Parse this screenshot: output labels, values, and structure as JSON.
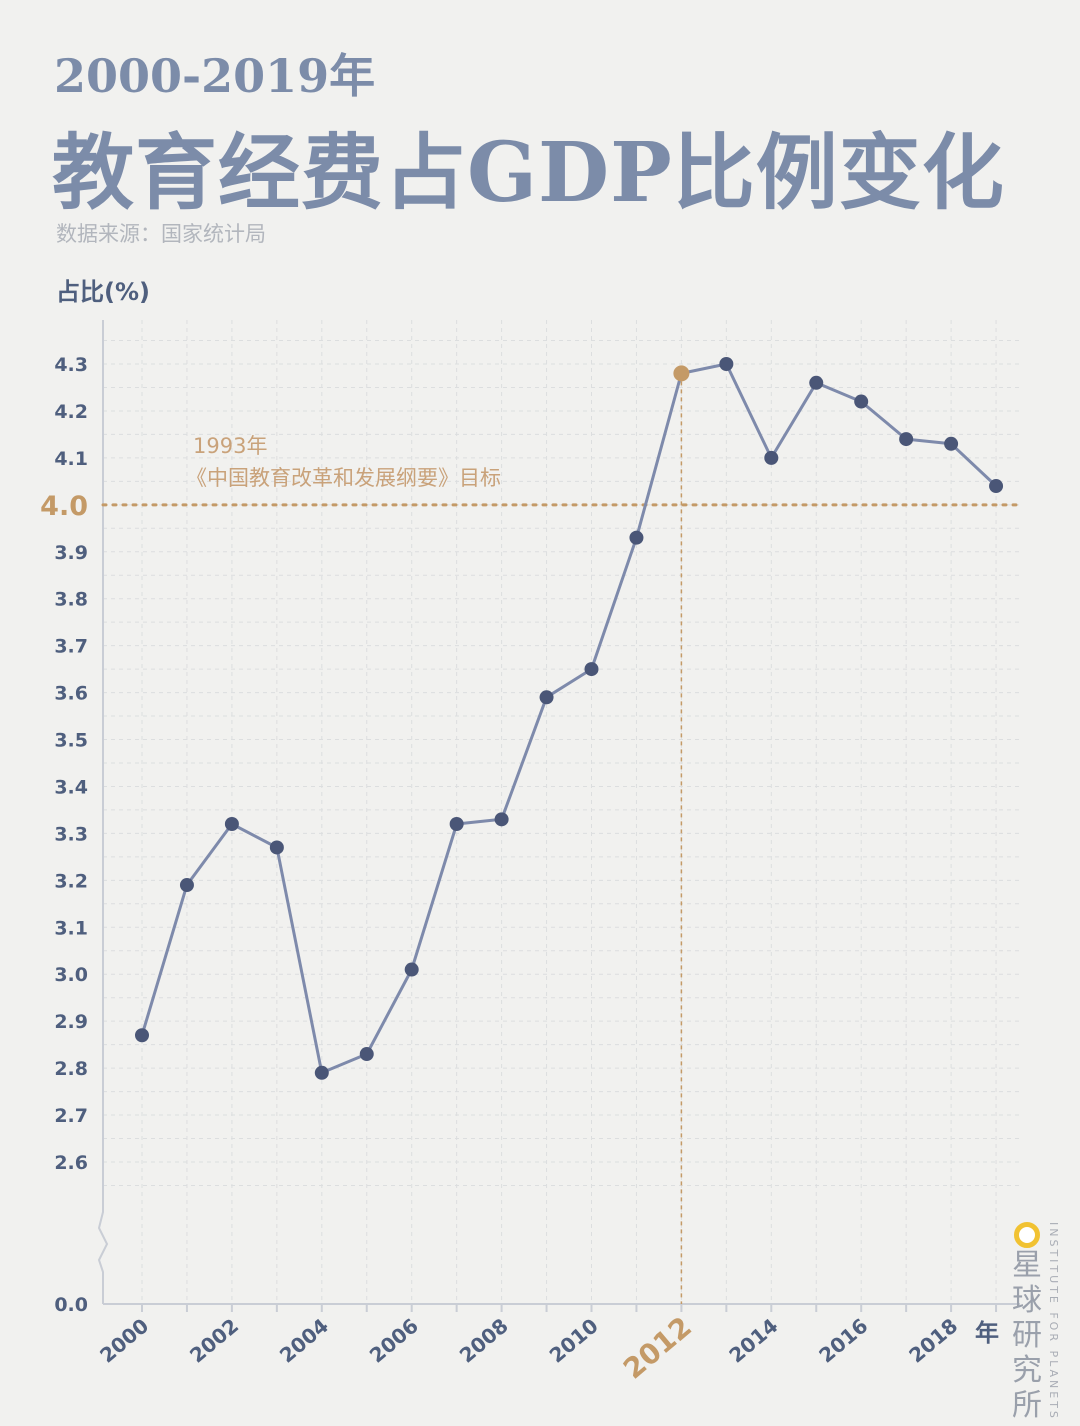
{
  "header": {
    "title_line1": "2000-2019年",
    "title_line2": "教育经费占GDP比例变化",
    "source": "数据来源：国家统计局"
  },
  "branding": {
    "logo_cn": "星球研究所",
    "logo_en": "INSTITUTE FOR PLANETS"
  },
  "colors": {
    "series": "#7e8aab",
    "point": "#4a5677",
    "accent": "#c49a67",
    "title": "#7c8ca9",
    "axis": "#c9cdd5"
  },
  "chart_data": {
    "type": "line",
    "ylabel": "占比(%)",
    "xlabel": "年",
    "x": [
      2000,
      2001,
      2002,
      2003,
      2004,
      2005,
      2006,
      2007,
      2008,
      2009,
      2010,
      2011,
      2012,
      2013,
      2014,
      2015,
      2016,
      2017,
      2018,
      2019
    ],
    "series": [
      {
        "values": [
          2.87,
          3.19,
          3.32,
          3.27,
          2.79,
          2.83,
          3.01,
          3.32,
          3.33,
          3.59,
          3.65,
          3.93,
          4.28,
          4.3,
          4.1,
          4.26,
          4.22,
          4.14,
          4.13,
          4.04
        ]
      }
    ],
    "y_ticks": [
      "0.0",
      "2.6",
      "2.7",
      "2.8",
      "2.9",
      "3.0",
      "3.1",
      "3.2",
      "3.3",
      "3.4",
      "3.5",
      "3.6",
      "3.7",
      "3.8",
      "3.9",
      "4.0",
      "4.1",
      "4.2",
      "4.3"
    ],
    "x_tick_labels": [
      "2000",
      "2002",
      "2004",
      "2006",
      "2008",
      "2010",
      "2012",
      "2014",
      "2016",
      "2018"
    ],
    "ylim": [
      2.6,
      4.3
    ],
    "y_axis_break": true,
    "grid": true,
    "highlight": {
      "x": 2012,
      "label": "2012"
    },
    "reference_line": {
      "y": 4.0,
      "label": "4.0",
      "annotation_line1": "1993年",
      "annotation_line2": "《中国教育改革和发展纲要》目标"
    }
  }
}
